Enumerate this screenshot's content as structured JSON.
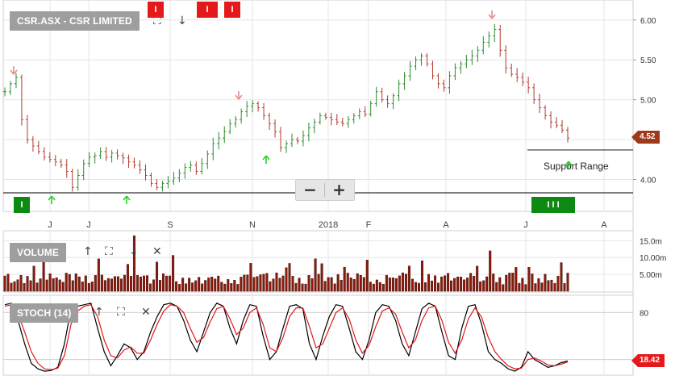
{
  "title": "CSR.ASX - CSR LIMITED",
  "panels": {
    "volume_label": "VOLUME",
    "stoch_label": "STOCH (14)"
  },
  "price_tag": "4.52",
  "stoch_tag": "18.42",
  "annotation": "Support Range",
  "zoom": {
    "minus": "−",
    "plus": "+"
  },
  "flags": {
    "red_1": "I",
    "red_2": "I",
    "red_3": "I",
    "green_1": "I",
    "green_multi": "I I I"
  },
  "colors": {
    "up": "#2e8b2e",
    "down": "#b03a2e",
    "volume": "#8b1a0c",
    "stoch_k": "#000000",
    "stoch_d": "#e0161a",
    "grid": "#e6e6e6",
    "up_arrow": "#2bd12b",
    "down_arrow": "#e88a8a"
  },
  "chart_data": [
    {
      "type": "candlestick",
      "title": "CSR.ASX - CSR LIMITED",
      "ylim": [
        3.6,
        6.2
      ],
      "yticks": [
        "6.00",
        "5.50",
        "5.00",
        "4.50",
        "4.00"
      ],
      "xticks": [
        "J",
        "J",
        "S",
        "N",
        "2018",
        "F",
        "A",
        "J",
        "A"
      ],
      "last": 4.52,
      "support_level": 4.37,
      "support_label": "Support Range",
      "close_series": [
        5.1,
        5.2,
        5.28,
        4.75,
        4.5,
        4.42,
        4.35,
        4.28,
        4.25,
        4.22,
        4.18,
        4.1,
        3.9,
        4.05,
        4.2,
        4.28,
        4.3,
        4.35,
        4.28,
        4.33,
        4.3,
        4.27,
        4.22,
        4.18,
        4.12,
        4.05,
        3.95,
        3.9,
        3.95,
        3.98,
        4.02,
        4.08,
        4.15,
        4.18,
        4.1,
        4.2,
        4.32,
        4.45,
        4.52,
        4.6,
        4.7,
        4.75,
        4.85,
        4.92,
        4.95,
        4.9,
        4.8,
        4.7,
        4.6,
        4.4,
        4.45,
        4.5,
        4.48,
        4.55,
        4.65,
        4.72,
        4.8,
        4.78,
        4.75,
        4.72,
        4.7,
        4.75,
        4.8,
        4.85,
        4.82,
        4.95,
        5.1,
        5.0,
        4.95,
        5.05,
        5.2,
        5.3,
        5.42,
        5.5,
        5.55,
        5.45,
        5.3,
        5.2,
        5.15,
        5.3,
        5.4,
        5.45,
        5.5,
        5.55,
        5.62,
        5.72,
        5.8,
        5.88,
        5.62,
        5.4,
        5.32,
        5.28,
        5.22,
        5.15,
        5.0,
        4.9,
        4.8,
        4.72,
        4.68,
        4.62,
        4.52
      ]
    },
    {
      "type": "bar",
      "title": "VOLUME",
      "yticks": [
        "15.0m",
        "10.00m",
        "5.00m"
      ],
      "ylim": [
        0,
        17
      ]
    },
    {
      "type": "line",
      "title": "STOCH (14)",
      "yticks": [
        "80"
      ],
      "ylim": [
        0,
        100
      ],
      "last": 18.42,
      "k_series": [
        90,
        92,
        70,
        40,
        15,
        8,
        5,
        6,
        10,
        40,
        85,
        88,
        90,
        92,
        60,
        30,
        12,
        25,
        40,
        35,
        20,
        30,
        55,
        75,
        90,
        92,
        88,
        70,
        45,
        30,
        55,
        80,
        92,
        88,
        60,
        40,
        70,
        90,
        88,
        50,
        20,
        30,
        60,
        88,
        90,
        85,
        40,
        20,
        50,
        75,
        90,
        88,
        60,
        30,
        20,
        45,
        80,
        90,
        88,
        70,
        40,
        25,
        55,
        85,
        92,
        88,
        55,
        25,
        20,
        60,
        88,
        90,
        65,
        30,
        20,
        15,
        8,
        5,
        10,
        30,
        20,
        15,
        10,
        12,
        16,
        18
      ],
      "d_series": [
        88,
        90,
        78,
        55,
        30,
        15,
        8,
        7,
        9,
        25,
        65,
        82,
        88,
        90,
        75,
        45,
        25,
        22,
        32,
        36,
        28,
        28,
        45,
        65,
        82,
        90,
        88,
        80,
        60,
        42,
        48,
        68,
        85,
        88,
        72,
        52,
        60,
        80,
        86,
        65,
        35,
        30,
        48,
        75,
        86,
        86,
        62,
        35,
        40,
        60,
        80,
        86,
        72,
        45,
        28,
        38,
        62,
        82,
        86,
        78,
        55,
        35,
        45,
        70,
        86,
        88,
        70,
        42,
        28,
        45,
        72,
        86,
        74,
        48,
        30,
        20,
        12,
        8,
        9,
        20,
        22,
        18,
        13,
        12,
        14,
        17
      ]
    }
  ]
}
